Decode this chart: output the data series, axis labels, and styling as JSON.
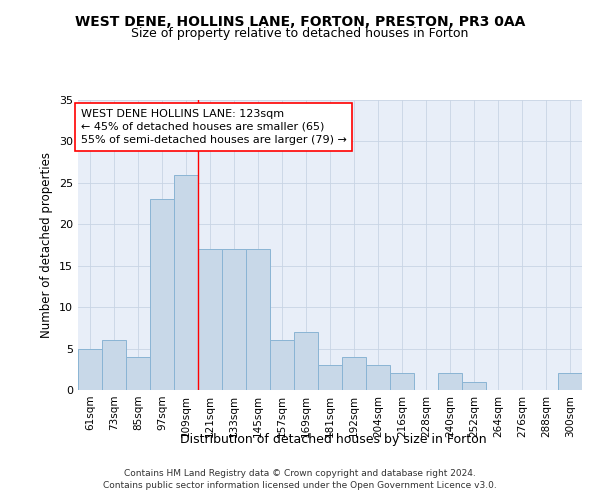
{
  "title1": "WEST DENE, HOLLINS LANE, FORTON, PRESTON, PR3 0AA",
  "title2": "Size of property relative to detached houses in Forton",
  "xlabel": "Distribution of detached houses by size in Forton",
  "ylabel": "Number of detached properties",
  "categories": [
    "61sqm",
    "73sqm",
    "85sqm",
    "97sqm",
    "109sqm",
    "121sqm",
    "133sqm",
    "145sqm",
    "157sqm",
    "169sqm",
    "181sqm",
    "192sqm",
    "204sqm",
    "216sqm",
    "228sqm",
    "240sqm",
    "252sqm",
    "264sqm",
    "276sqm",
    "288sqm",
    "300sqm"
  ],
  "values": [
    5,
    6,
    4,
    23,
    26,
    17,
    17,
    17,
    6,
    7,
    3,
    4,
    3,
    2,
    0,
    2,
    1,
    0,
    0,
    0,
    2
  ],
  "bar_color": "#c8d8e8",
  "bar_edge_color": "#8ab4d4",
  "vline_x": 4.5,
  "vline_color": "red",
  "annotation_text": "WEST DENE HOLLINS LANE: 123sqm\n← 45% of detached houses are smaller (65)\n55% of semi-detached houses are larger (79) →",
  "annotation_box_color": "white",
  "annotation_box_edge": "red",
  "ylim": [
    0,
    35
  ],
  "yticks": [
    0,
    5,
    10,
    15,
    20,
    25,
    30,
    35
  ],
  "grid_color": "#c8d4e4",
  "background_color": "#e8eef8",
  "footer": "Contains HM Land Registry data © Crown copyright and database right 2024.\nContains public sector information licensed under the Open Government Licence v3.0.",
  "title1_fontsize": 10,
  "title2_fontsize": 9,
  "xlabel_fontsize": 9,
  "ylabel_fontsize": 8.5,
  "tick_fontsize": 7.5,
  "ytick_fontsize": 8,
  "annotation_fontsize": 8,
  "footer_fontsize": 6.5
}
